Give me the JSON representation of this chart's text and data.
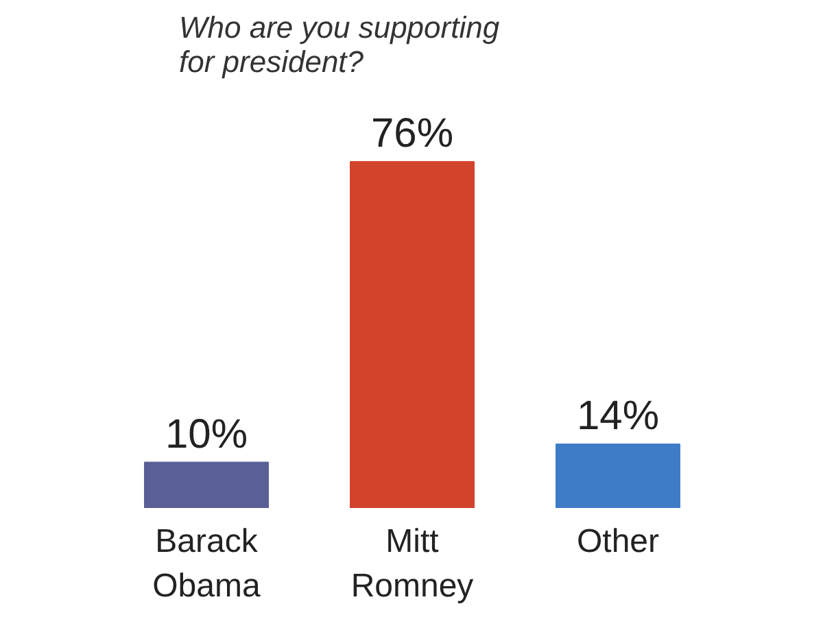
{
  "chart_data": {
    "type": "bar",
    "title": "Who are you supporting for president?",
    "categories": [
      "Barack Obama",
      "Mitt Romney",
      "Other"
    ],
    "values": [
      10,
      76,
      14
    ],
    "colors": [
      "#5a5f96",
      "#d2432c",
      "#3f7cc8"
    ],
    "value_labels": [
      "10%",
      "76%",
      "14%"
    ],
    "grid": false
  }
}
